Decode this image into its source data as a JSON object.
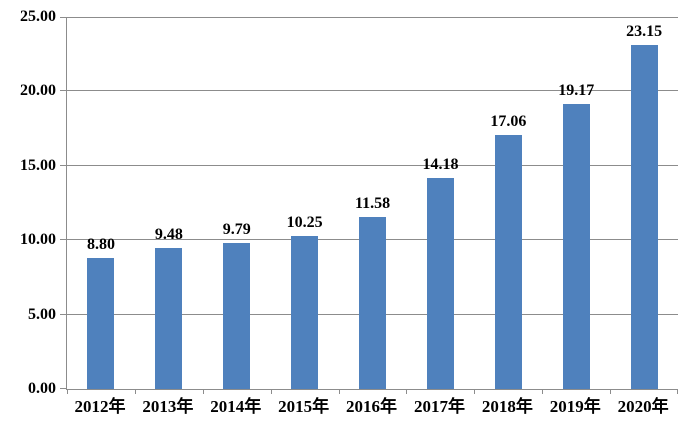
{
  "chart_data": {
    "type": "bar",
    "title": "",
    "xlabel": "",
    "ylabel": "",
    "categories": [
      "2012年",
      "2013年",
      "2014年",
      "2015年",
      "2016年",
      "2017年",
      "2018年",
      "2019年",
      "2020年"
    ],
    "values": [
      8.8,
      9.48,
      9.79,
      10.25,
      11.58,
      14.18,
      17.06,
      19.17,
      23.15
    ],
    "value_labels": [
      "8.80",
      "9.48",
      "9.79",
      "10.25",
      "11.58",
      "14.18",
      "17.06",
      "19.17",
      "23.15"
    ],
    "ylim": [
      0,
      25
    ],
    "ytick_step": 5,
    "yticks": [
      0,
      5,
      10,
      15,
      20,
      25
    ],
    "ytick_labels": [
      "0.00",
      "5.00",
      "10.00",
      "15.00",
      "20.00",
      "25.00"
    ],
    "grid": true,
    "legend": false,
    "colors": {
      "bar": "#4F81BD",
      "gridline": "#8C8C8C",
      "axis": "#8C8C8C",
      "label": "#000000",
      "background": "#FFFFFF"
    }
  }
}
